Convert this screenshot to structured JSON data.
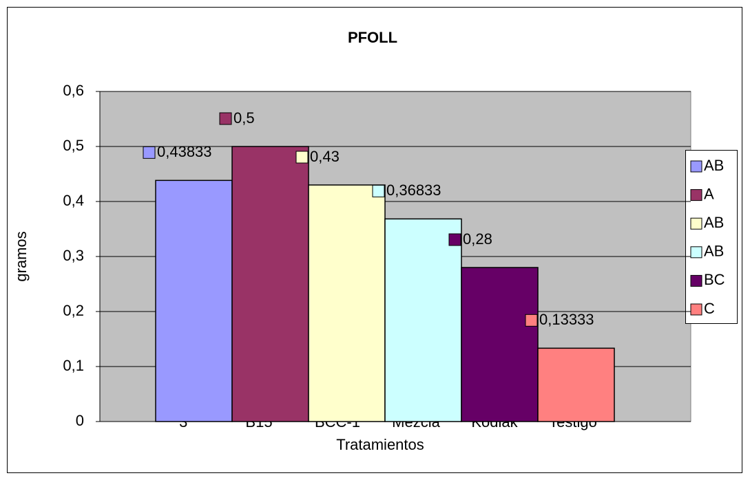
{
  "chart_data": {
    "type": "bar",
    "title": "PFOLL",
    "x_label": "Tratamientos",
    "y_label": "gramos",
    "categories": [
      "*3",
      "B15",
      "BCC-1",
      "Mezcla",
      "Kodiak",
      "Testigo"
    ],
    "values": [
      0.43833,
      0.5,
      0.43,
      0.36833,
      0.28,
      0.13333
    ],
    "value_labels": [
      "0,43833",
      "0,5",
      "0,43",
      "0,36833",
      "0,28",
      "0,13333"
    ],
    "colors": [
      "#9999ff",
      "#993366",
      "#ffffcc",
      "#ccffff",
      "#660066",
      "#ff8080"
    ],
    "legend": [
      "AB",
      "A",
      "AB",
      "AB",
      "BC",
      "C"
    ],
    "legend_position": "right",
    "ylim": [
      0,
      0.6
    ],
    "yticks": [
      0,
      {
        "value": 0.1,
        "label": "0,1"
      },
      {
        "value": 0.2,
        "label": "0,2"
      },
      {
        "value": 0.3,
        "label": "0,3"
      },
      {
        "value": 0.4,
        "label": "0,4"
      },
      {
        "value": 0.5,
        "label": "0,5"
      },
      {
        "value": 0.6,
        "label": "0,6"
      }
    ],
    "grid": true
  }
}
